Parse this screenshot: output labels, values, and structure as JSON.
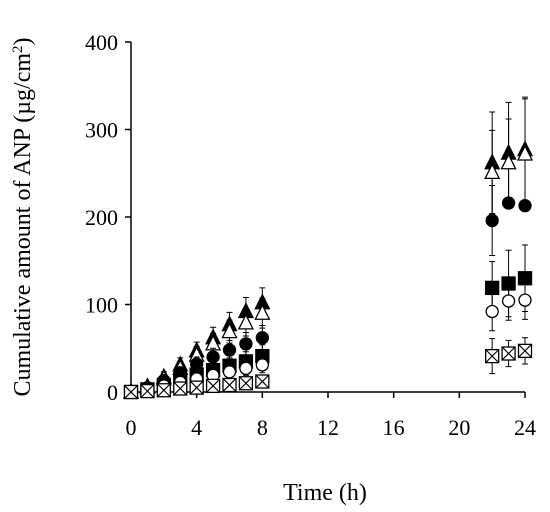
{
  "chart_data": {
    "type": "scatter",
    "title": "",
    "xlabel": "Time (h)",
    "ylabel_main": "Cumulative amount of ANP (µg/cm",
    "ylabel_sup": "2",
    "ylabel_end": ")",
    "xlim": [
      0,
      24
    ],
    "ylim": [
      0,
      400
    ],
    "xticks": [
      0,
      4,
      8,
      12,
      16,
      20,
      24
    ],
    "yticks": [
      0,
      100,
      200,
      300,
      400
    ],
    "grid": false,
    "legend": "none",
    "series": [
      {
        "marker": "triangle-filled",
        "points": [
          {
            "x": 0,
            "y": 0,
            "err": 2
          },
          {
            "x": 1,
            "y": 6,
            "err": 3
          },
          {
            "x": 2,
            "y": 17,
            "err": 6
          },
          {
            "x": 3,
            "y": 31,
            "err": 8
          },
          {
            "x": 4,
            "y": 47,
            "err": 10
          },
          {
            "x": 5,
            "y": 62,
            "err": 12
          },
          {
            "x": 6,
            "y": 77,
            "err": 14
          },
          {
            "x": 7,
            "y": 92,
            "err": 16
          },
          {
            "x": 8,
            "y": 102,
            "err": 17
          },
          {
            "x": 22,
            "y": 262,
            "err": 58
          },
          {
            "x": 23,
            "y": 273,
            "err": 58
          },
          {
            "x": 24,
            "y": 277,
            "err": 58
          }
        ]
      },
      {
        "marker": "triangle-open",
        "points": [
          {
            "x": 0,
            "y": 0,
            "err": 2
          },
          {
            "x": 1,
            "y": 5,
            "err": 3
          },
          {
            "x": 2,
            "y": 15,
            "err": 5
          },
          {
            "x": 3,
            "y": 27,
            "err": 8
          },
          {
            "x": 4,
            "y": 42,
            "err": 10
          },
          {
            "x": 5,
            "y": 55,
            "err": 12
          },
          {
            "x": 6,
            "y": 69,
            "err": 13
          },
          {
            "x": 7,
            "y": 79,
            "err": 15
          },
          {
            "x": 8,
            "y": 90,
            "err": 17
          },
          {
            "x": 22,
            "y": 251,
            "err": 48
          },
          {
            "x": 23,
            "y": 262,
            "err": 50
          },
          {
            "x": 24,
            "y": 272,
            "err": 65
          }
        ]
      },
      {
        "marker": "circle-filled",
        "points": [
          {
            "x": 0,
            "y": 0,
            "err": 1
          },
          {
            "x": 1,
            "y": 5,
            "err": 2
          },
          {
            "x": 2,
            "y": 13,
            "err": 4
          },
          {
            "x": 3,
            "y": 22,
            "err": 6
          },
          {
            "x": 4,
            "y": 32,
            "err": 8
          },
          {
            "x": 5,
            "y": 40,
            "err": 10
          },
          {
            "x": 6,
            "y": 48,
            "err": 11
          },
          {
            "x": 7,
            "y": 55,
            "err": 13
          },
          {
            "x": 8,
            "y": 62,
            "err": 14
          },
          {
            "x": 22,
            "y": 196,
            "err": 40
          },
          {
            "x": 23,
            "y": 216,
            "err": 6
          },
          {
            "x": 24,
            "y": 213,
            "err": 6
          }
        ]
      },
      {
        "marker": "square-filled",
        "points": [
          {
            "x": 0,
            "y": 0,
            "err": 1
          },
          {
            "x": 1,
            "y": 3,
            "err": 2
          },
          {
            "x": 2,
            "y": 8,
            "err": 3
          },
          {
            "x": 3,
            "y": 14,
            "err": 5
          },
          {
            "x": 4,
            "y": 20,
            "err": 6
          },
          {
            "x": 5,
            "y": 25,
            "err": 8
          },
          {
            "x": 6,
            "y": 30,
            "err": 9
          },
          {
            "x": 7,
            "y": 35,
            "err": 11
          },
          {
            "x": 8,
            "y": 41,
            "err": 13
          },
          {
            "x": 22,
            "y": 119,
            "err": 30
          },
          {
            "x": 23,
            "y": 124,
            "err": 38
          },
          {
            "x": 24,
            "y": 130,
            "err": 38
          }
        ]
      },
      {
        "marker": "circle-open",
        "points": [
          {
            "x": 0,
            "y": 0,
            "err": 1
          },
          {
            "x": 1,
            "y": 3,
            "err": 2
          },
          {
            "x": 2,
            "y": 7,
            "err": 3
          },
          {
            "x": 3,
            "y": 11,
            "err": 4
          },
          {
            "x": 4,
            "y": 15,
            "err": 5
          },
          {
            "x": 5,
            "y": 19,
            "err": 6
          },
          {
            "x": 6,
            "y": 23,
            "err": 7
          },
          {
            "x": 7,
            "y": 27,
            "err": 8
          },
          {
            "x": 8,
            "y": 31,
            "err": 9
          },
          {
            "x": 22,
            "y": 92,
            "err": 22
          },
          {
            "x": 23,
            "y": 104,
            "err": 22
          },
          {
            "x": 24,
            "y": 105,
            "err": 22
          }
        ]
      },
      {
        "marker": "square-crossed",
        "points": [
          {
            "x": 0,
            "y": 0,
            "err": 1
          },
          {
            "x": 1,
            "y": 1,
            "err": 1
          },
          {
            "x": 2,
            "y": 2,
            "err": 2
          },
          {
            "x": 3,
            "y": 4,
            "err": 2
          },
          {
            "x": 4,
            "y": 5,
            "err": 3
          },
          {
            "x": 5,
            "y": 7,
            "err": 3
          },
          {
            "x": 6,
            "y": 8,
            "err": 4
          },
          {
            "x": 7,
            "y": 10,
            "err": 5
          },
          {
            "x": 8,
            "y": 12,
            "err": 6
          },
          {
            "x": 22,
            "y": 41,
            "err": 20
          },
          {
            "x": 23,
            "y": 44,
            "err": 15
          },
          {
            "x": 24,
            "y": 47,
            "err": 15
          }
        ]
      }
    ]
  }
}
